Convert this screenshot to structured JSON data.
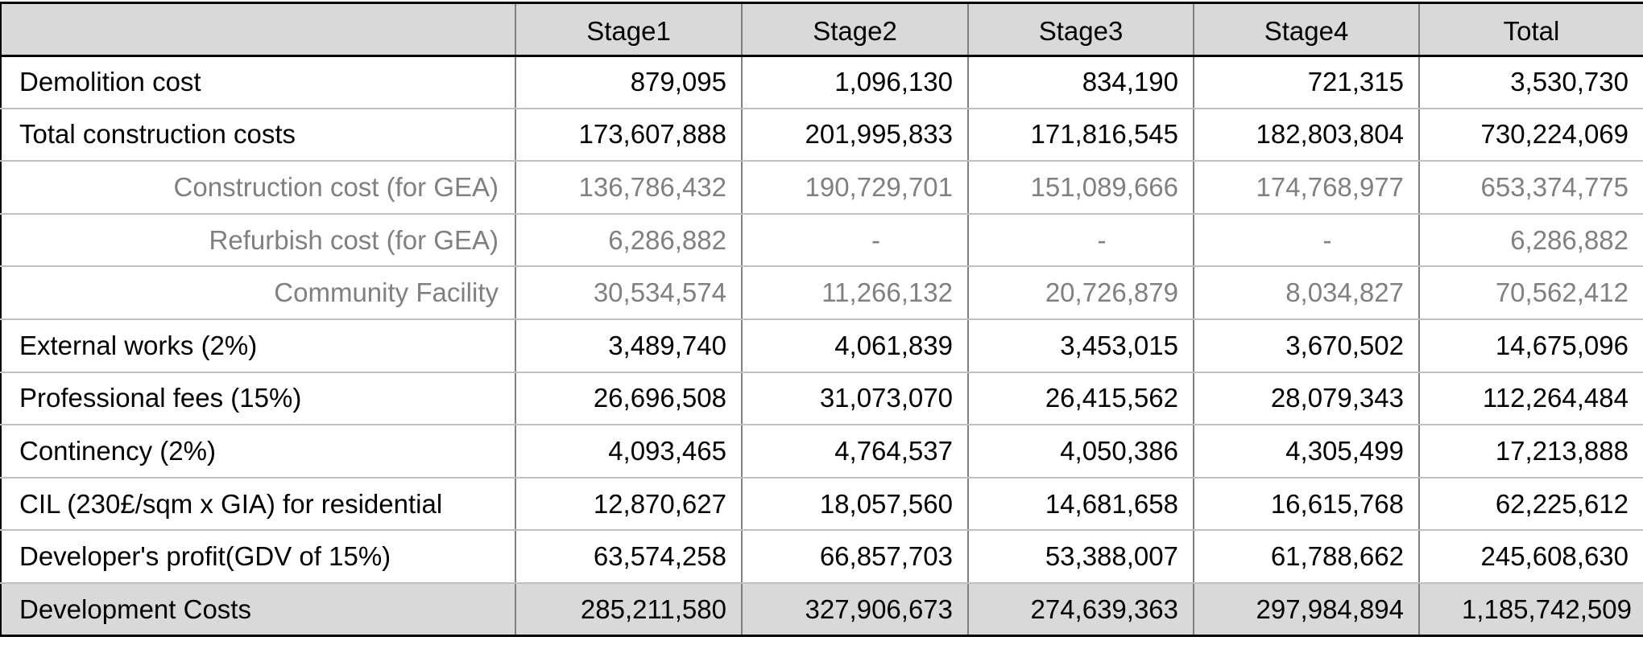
{
  "table": {
    "headers": [
      "",
      "Stage1",
      "Stage2",
      "Stage3",
      "Stage4",
      "Total"
    ],
    "rows": [
      {
        "label": "Demolition cost",
        "values": [
          "879,095",
          "1,096,130",
          "834,190",
          "721,315",
          "3,530,730"
        ],
        "style": "main"
      },
      {
        "label": "Total construction costs",
        "values": [
          "173,607,888",
          "201,995,833",
          "171,816,545",
          "182,803,804",
          "730,224,069"
        ],
        "style": "main"
      },
      {
        "label": "Construction cost (for GEA)",
        "values": [
          "136,786,432",
          "190,729,701",
          "151,089,666",
          "174,768,977",
          "653,374,775"
        ],
        "style": "sub"
      },
      {
        "label": "Refurbish cost  (for GEA)",
        "values": [
          "6,286,882",
          "-",
          "-",
          "-",
          "6,286,882"
        ],
        "style": "sub"
      },
      {
        "label": "Community Facility",
        "values": [
          "30,534,574",
          "11,266,132",
          "20,726,879",
          "8,034,827",
          "70,562,412"
        ],
        "style": "sub"
      },
      {
        "label": "External works (2%)",
        "values": [
          "3,489,740",
          "4,061,839",
          "3,453,015",
          "3,670,502",
          "14,675,096"
        ],
        "style": "main"
      },
      {
        "label": "Professional fees (15%)",
        "values": [
          "26,696,508",
          "31,073,070",
          "26,415,562",
          "28,079,343",
          "112,264,484"
        ],
        "style": "main"
      },
      {
        "label": "Continency (2%)",
        "values": [
          "4,093,465",
          "4,764,537",
          "4,050,386",
          "4,305,499",
          "17,213,888"
        ],
        "style": "main"
      },
      {
        "label": "CIL (230£/sqm x GIA) for residential",
        "values": [
          "12,870,627",
          "18,057,560",
          "14,681,658",
          "16,615,768",
          "62,225,612"
        ],
        "style": "main"
      },
      {
        "label": "Developer's profit(GDV of 15%)",
        "values": [
          "63,574,258",
          "66,857,703",
          "53,388,007",
          "61,788,662",
          "245,608,630"
        ],
        "style": "main"
      }
    ],
    "footer": {
      "label": "Development Costs",
      "values": [
        "285,211,580",
        "327,906,673",
        "274,639,363",
        "297,984,894",
        "1,185,742,509"
      ]
    }
  }
}
